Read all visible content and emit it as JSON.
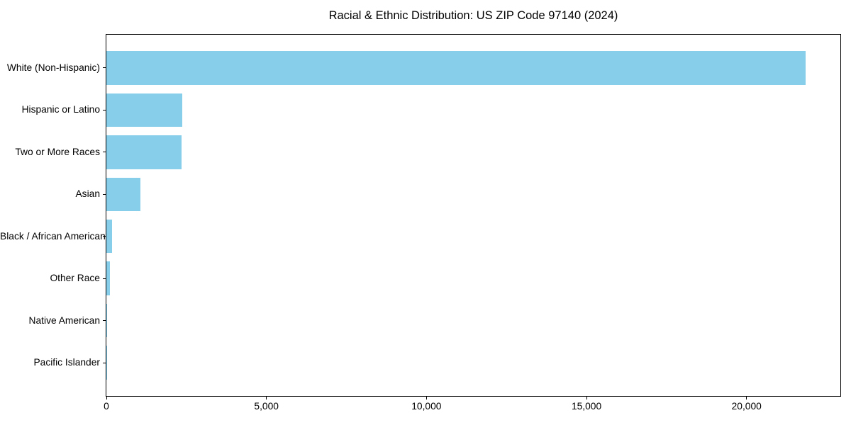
{
  "chart_data": {
    "type": "bar",
    "orientation": "horizontal",
    "title": "Racial & Ethnic Distribution: US ZIP Code 97140 (2024)",
    "categories": [
      "White (Non-Hispanic)",
      "Hispanic or Latino",
      "Two or More Races",
      "Asian",
      "Black / African American",
      "Other Race",
      "Native American",
      "Pacific Islander"
    ],
    "values": [
      21840,
      2370,
      2350,
      1060,
      175,
      105,
      25,
      10
    ],
    "bar_color": "#87CEEB",
    "xlabel": "",
    "ylabel": "",
    "xlim": [
      0,
      22930
    ],
    "x_ticks": {
      "values": [
        0,
        5000,
        10000,
        15000,
        20000
      ],
      "labels": [
        "0",
        "5,000",
        "10,000",
        "15,000",
        "20,000"
      ]
    },
    "grid": false,
    "legend": null,
    "frame": true,
    "axis_color": "#000000",
    "background_color": "#ffffff"
  }
}
